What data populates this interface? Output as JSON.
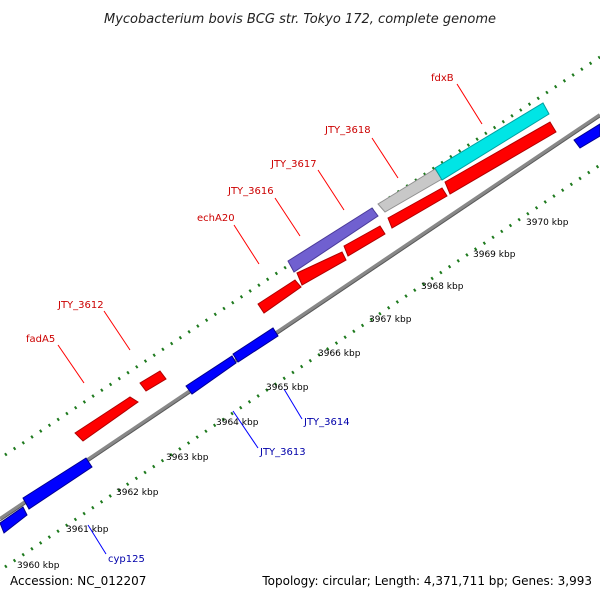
{
  "title": "Mycobacterium bovis BCG str. Tokyo 172, complete genome",
  "accession": "Accession: NC_012207",
  "topology": "Topology: circular; Length: 4,371,711 bp; Genes: 3,993",
  "colors": {
    "backbone": "#888888",
    "gc_dots": "#1e7a1e",
    "forward_gene": "#ff0000",
    "reverse_gene": "#0000ff",
    "forward_label": "#cc0000",
    "reverse_label": "#0000aa"
  },
  "ticks": [
    {
      "label": "3960 kbp"
    },
    {
      "label": "3961 kbp"
    },
    {
      "label": "3962 kbp"
    },
    {
      "label": "3963 kbp"
    },
    {
      "label": "3964 kbp"
    },
    {
      "label": "3965 kbp"
    },
    {
      "label": "3966 kbp"
    },
    {
      "label": "3967 kbp"
    },
    {
      "label": "3968 kbp"
    },
    {
      "label": "3969 kbp"
    },
    {
      "label": "3970 kbp"
    }
  ],
  "labels": {
    "fdxB": "fdxB",
    "JTY_3618": "JTY_3618",
    "JTY_3617": "JTY_3617",
    "JTY_3616": "JTY_3616",
    "echA20": "echA20",
    "JTY_3612": "JTY_3612",
    "fadA5": "fadA5",
    "JTY_3614": "JTY_3614",
    "JTY_3613": "JTY_3613",
    "cyp125": "cyp125"
  }
}
